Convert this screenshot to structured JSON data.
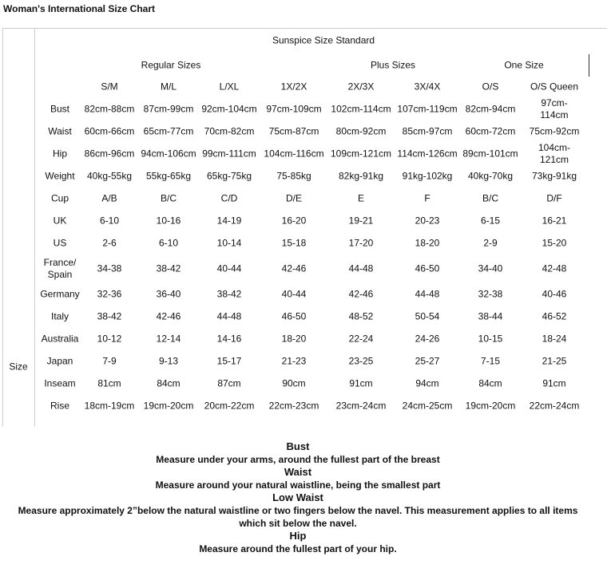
{
  "header": {
    "title": "Woman's International Size Chart"
  },
  "table": {
    "caption": "Sunspice Size Standard",
    "stub_label": "Size",
    "groups": [
      "Regular Sizes",
      "Plus Sizes",
      "One Size"
    ],
    "sizes": [
      "S/M",
      "M/L",
      "L/XL",
      "1X/2X",
      "2X/3X",
      "3X/4X",
      "O/S",
      "O/S Queen"
    ],
    "rows": [
      {
        "label": "Bust",
        "cells": [
          "82cm-88cm",
          "87cm-99cm",
          "92cm-104cm",
          "97cm-109cm",
          "102cm-114cm",
          "107cm-119cm",
          "82cm-94cm",
          "97cm-114cm"
        ]
      },
      {
        "label": "Waist",
        "cells": [
          "60cm-66cm",
          "65cm-77cm",
          "70cm-82cm",
          "75cm-87cm",
          "80cm-92cm",
          "85cm-97cm",
          "60cm-72cm",
          "75cm-92cm"
        ]
      },
      {
        "label": "Hip",
        "cells": [
          "86cm-96cm",
          "94cm-106cm",
          "99cm-111cm",
          "104cm-116cm",
          "109cm-121cm",
          "114cm-126cm",
          "89cm-101cm",
          "104cm-121cm"
        ]
      },
      {
        "label": "Weight",
        "cells": [
          "40kg-55kg",
          "55kg-65kg",
          "65kg-75kg",
          "75-85kg",
          "82kg-91kg",
          "91kg-102kg",
          "40kg-70kg",
          "73kg-91kg"
        ]
      },
      {
        "label": "Cup",
        "cells": [
          "A/B",
          "B/C",
          "C/D",
          "D/E",
          "E",
          "F",
          "B/C",
          "D/F"
        ]
      },
      {
        "label": "UK",
        "cells": [
          "6-10",
          "10-16",
          "14-19",
          "16-20",
          "19-21",
          "20-23",
          "6-15",
          "16-21"
        ]
      },
      {
        "label": "US",
        "cells": [
          "2-6",
          "6-10",
          "10-14",
          "15-18",
          "17-20",
          "18-20",
          "2-9",
          "15-20"
        ]
      },
      {
        "label": "France/\nSpain",
        "cells": [
          "34-38",
          "38-42",
          "40-44",
          "42-46",
          "44-48",
          "46-50",
          "34-40",
          "42-48"
        ]
      },
      {
        "label": "Germany",
        "cells": [
          "32-36",
          "36-40",
          "38-42",
          "40-44",
          "42-46",
          "44-48",
          "32-38",
          "40-46"
        ]
      },
      {
        "label": "Italy",
        "cells": [
          "38-42",
          "42-46",
          "44-48",
          "46-50",
          "48-52",
          "50-54",
          "38-44",
          "46-52"
        ]
      },
      {
        "label": "Australia",
        "cells": [
          "10-12",
          "12-14",
          "14-16",
          "18-20",
          "22-24",
          "24-26",
          "10-15",
          "18-24"
        ]
      },
      {
        "label": "Japan",
        "cells": [
          "7-9",
          "9-13",
          "15-17",
          "21-23",
          "23-25",
          "25-27",
          "7-15",
          "21-25"
        ]
      },
      {
        "label": "Inseam",
        "cells": [
          "81cm",
          "84cm",
          "87cm",
          "90cm",
          "91cm",
          "94cm",
          "84cm",
          "91cm"
        ]
      },
      {
        "label": "Rise",
        "cells": [
          "18cm-19cm",
          "19cm-20cm",
          "20cm-22cm",
          "22cm-23cm",
          "23cm-24cm",
          "24cm-25cm",
          "19cm-20cm",
          "22cm-24cm"
        ]
      }
    ]
  },
  "notes": [
    {
      "term": "Bust",
      "text": "Measure under your arms, around the fullest part of the breast"
    },
    {
      "term": "Waist",
      "text": "Measure around your natural waistline, being the smallest part"
    },
    {
      "term": "Low Waist",
      "text": "Measure approximately 2”below the natural waistline or two fingers below the navel. This measurement applies to all items which sit below the navel."
    },
    {
      "term": "Hip",
      "text": "Measure around the fullest part of your hip."
    }
  ]
}
